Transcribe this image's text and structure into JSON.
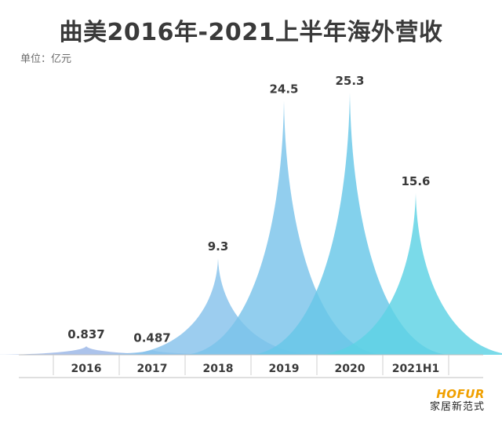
{
  "title": "曲美2016年-2021上半年海外营收",
  "unit_label": "单位：亿元",
  "brand": {
    "logo_text": "HOFUR",
    "name": "家居新范式",
    "logo_color": "#f0a000"
  },
  "chart_data": {
    "type": "area",
    "categories": [
      "2016",
      "2017",
      "2018",
      "2019",
      "2020",
      "2021H1"
    ],
    "series": [
      {
        "values": [
          0.837,
          0.487,
          9.3,
          24.5,
          25.3,
          15.6
        ]
      }
    ],
    "data_labels": [
      "0.837",
      "0.487",
      "9.3",
      "24.5",
      "25.3",
      "15.6"
    ],
    "colors": [
      "#9ab6e6",
      "#8fc0ea",
      "#86c2ec",
      "#7ac3ea",
      "#68c7e8",
      "#5dd2e4"
    ],
    "ylim": [
      0,
      25.3
    ],
    "grid": false,
    "legend": "none"
  }
}
